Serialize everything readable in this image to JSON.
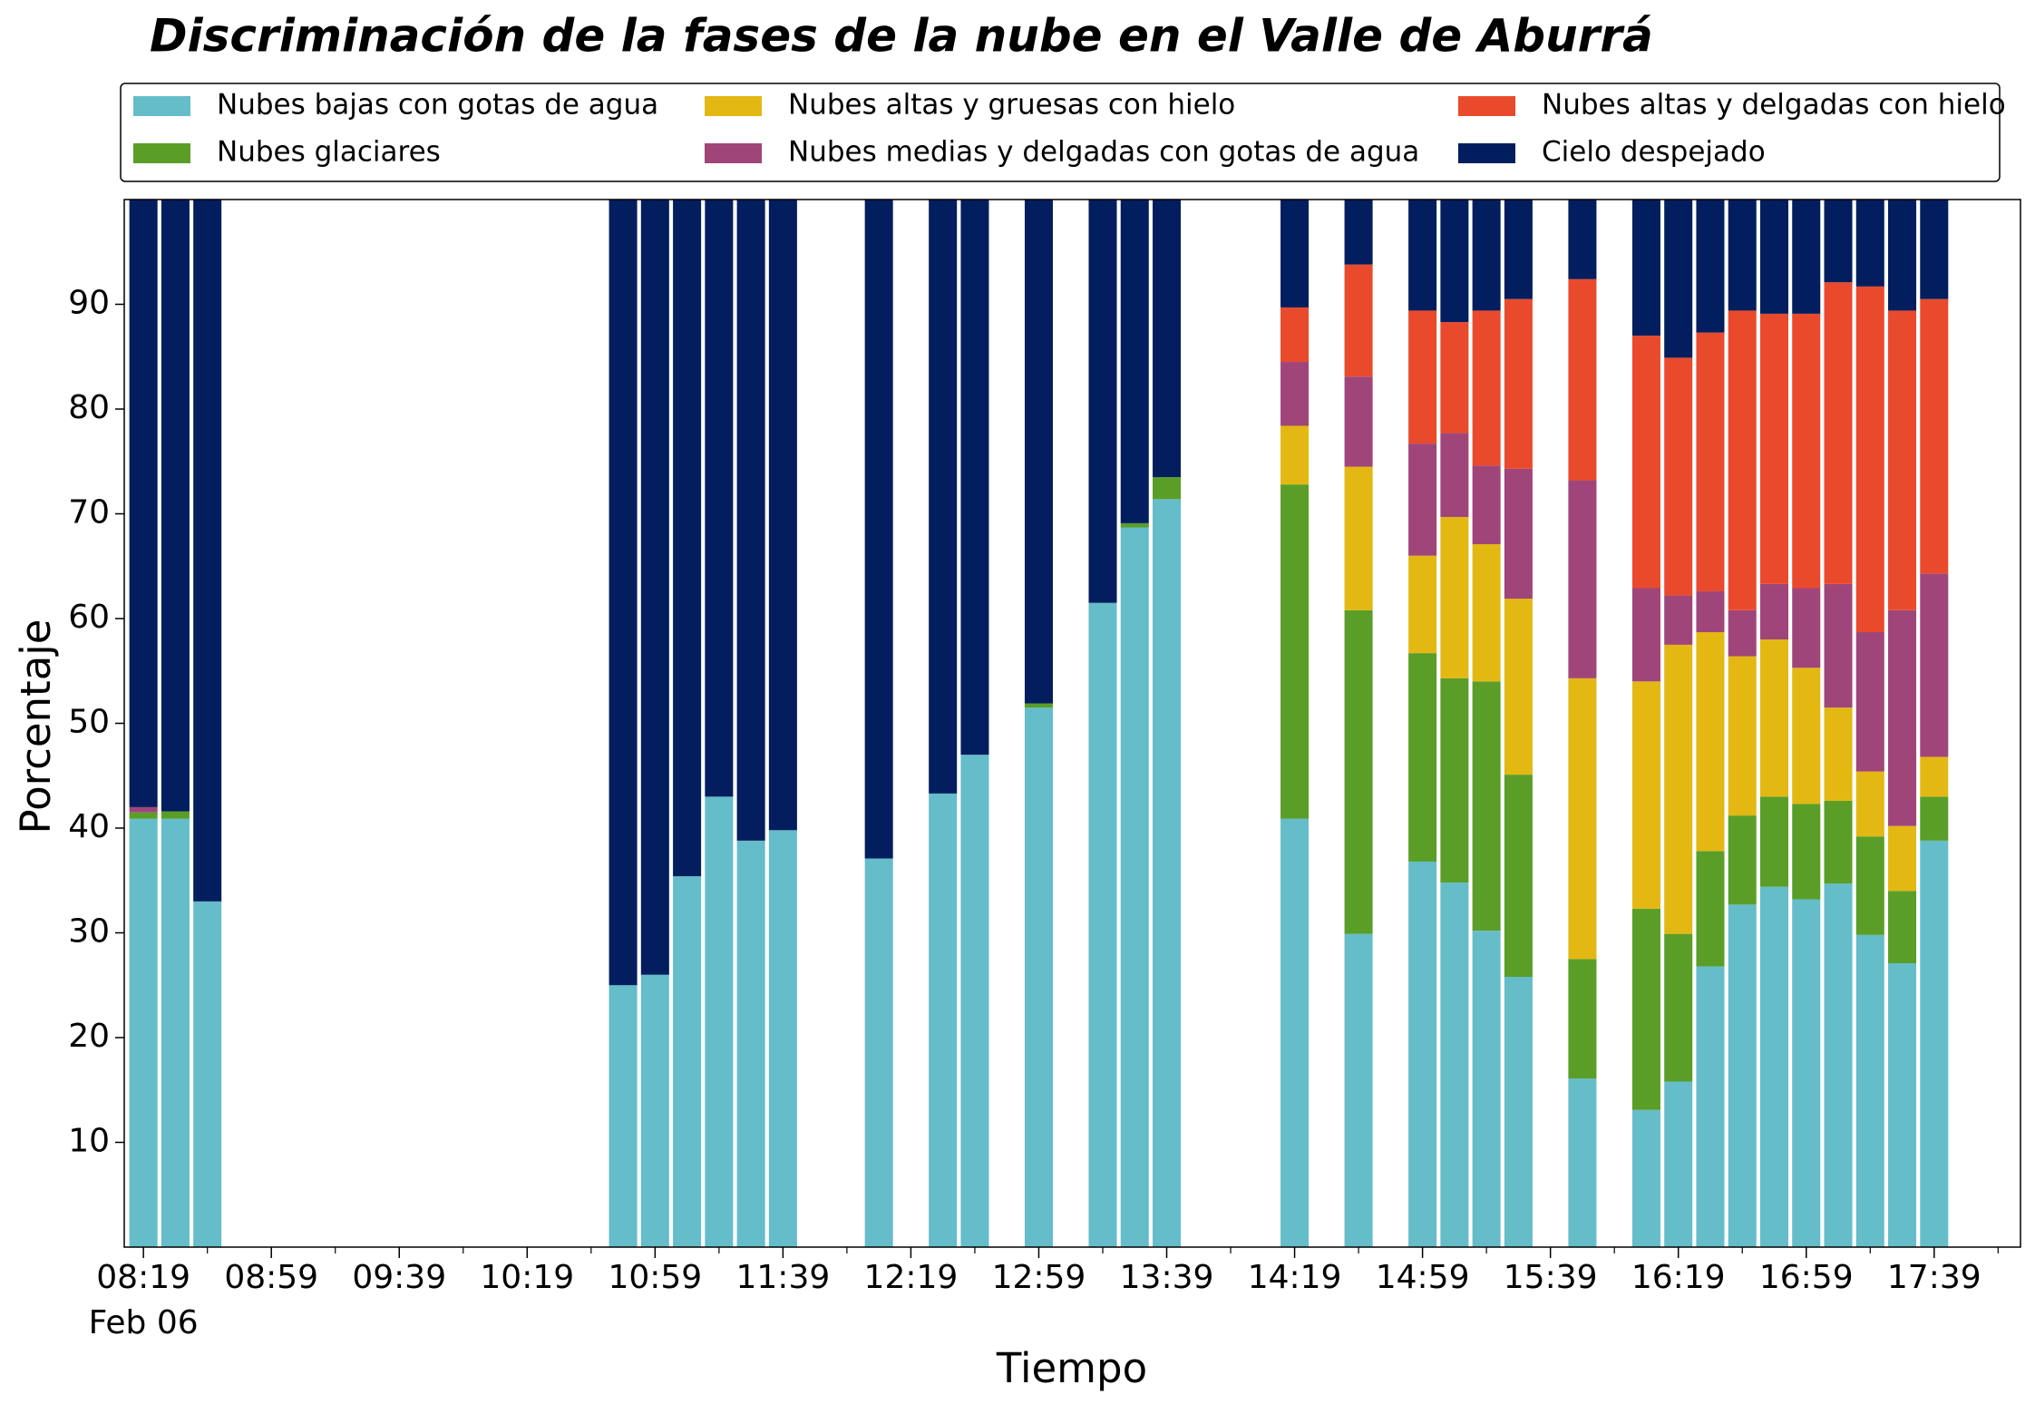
{
  "chart_data": {
    "type": "stacked_bar",
    "title": "Discriminación de la fases de la nube en el Valle de Aburrá",
    "xlabel": "Tiempo",
    "ylabel": "Porcentaje",
    "x_date": "Feb 06",
    "x": [
      "08:19",
      "08:29",
      "08:39",
      "10:49",
      "10:59",
      "11:09",
      "11:19",
      "11:29",
      "11:39",
      "12:09",
      "12:29",
      "12:39",
      "12:59",
      "13:19",
      "13:29",
      "13:39",
      "14:19",
      "14:39",
      "14:59",
      "15:09",
      "15:19",
      "15:29",
      "15:49",
      "16:09",
      "16:19",
      "16:29",
      "16:39",
      "16:49",
      "16:59",
      "17:09",
      "17:19",
      "17:29",
      "17:39"
    ],
    "series": [
      {
        "name": "Nubes bajas con gotas de agua",
        "color": "#64bdc9",
        "values": [
          40.9,
          40.9,
          33,
          25,
          26,
          35.4,
          43,
          38.8,
          39.8,
          37.1,
          43.3,
          47,
          51.5,
          61.5,
          68.7,
          71.4,
          40.9,
          29.9,
          36.8,
          34.8,
          30.2,
          25.8,
          16.1,
          13.1,
          15.8,
          26.8,
          32.7,
          34.4,
          33.2,
          34.7,
          29.8,
          27.1,
          38.8
        ]
      },
      {
        "name": "Nubes glaciares",
        "color": "#5a9e28",
        "values": [
          0.6,
          0.7,
          0,
          0,
          0,
          0,
          0,
          0,
          0,
          0,
          0,
          0,
          0.4,
          0,
          0.4,
          2.1,
          31.9,
          30.9,
          19.9,
          19.5,
          23.8,
          19.3,
          11.4,
          19.2,
          14.1,
          11,
          8.5,
          8.6,
          9.1,
          7.9,
          9.4,
          6.9,
          4.2
        ]
      },
      {
        "name": "Nubes altas y gruesas con hielo",
        "color": "#e3b813",
        "values": [
          0,
          0,
          0,
          0,
          0,
          0,
          0,
          0,
          0,
          0,
          0,
          0,
          0,
          0,
          0,
          0,
          5.6,
          13.7,
          9.3,
          15.4,
          13.1,
          16.8,
          26.8,
          21.7,
          27.6,
          20.9,
          15.2,
          15,
          13,
          8.9,
          6.2,
          6.2,
          3.8
        ]
      },
      {
        "name": "Nubes medias y delgadas con gotas de agua",
        "color": "#a04579",
        "values": [
          0.5,
          0,
          0,
          0,
          0,
          0,
          0,
          0,
          0,
          0,
          0,
          0,
          0,
          0,
          0,
          0,
          6.1,
          8.6,
          10.7,
          8,
          7.5,
          12.4,
          18.9,
          8.9,
          4.7,
          3.9,
          4.4,
          5.3,
          7.6,
          11.8,
          13.3,
          20.6,
          17.5
        ]
      },
      {
        "name": "Nubes altas y delgadas con hielo",
        "color": "#ea4a2c",
        "values": [
          0,
          0,
          0,
          0,
          0,
          0,
          0,
          0,
          0,
          0,
          0,
          0,
          0,
          0,
          0,
          0,
          5.2,
          10.7,
          12.7,
          10.6,
          14.8,
          16.2,
          19.2,
          24.1,
          22.7,
          24.7,
          28.6,
          25.8,
          26.2,
          28.8,
          33,
          28.6,
          26.2
        ]
      },
      {
        "name": "Cielo despejado",
        "color": "#021e5e",
        "values": [
          58,
          58.4,
          67,
          75,
          74,
          64.6,
          57,
          61.2,
          60.2,
          62.9,
          56.7,
          53,
          48.1,
          38.5,
          30.9,
          26.5,
          10.3,
          6.2,
          10.6,
          11.7,
          10.6,
          9.5,
          7.6,
          13,
          15.1,
          12.7,
          10.6,
          10.9,
          10.9,
          7.9,
          8.3,
          10.6,
          9.5
        ]
      }
    ],
    "xlim": [
      "08:13",
      "18:06"
    ],
    "xticks": [
      "08:19",
      "08:59",
      "09:39",
      "10:19",
      "10:59",
      "11:39",
      "12:19",
      "12:59",
      "13:39",
      "14:19",
      "14:59",
      "15:39",
      "16:19",
      "16:59",
      "17:39"
    ],
    "ylim": [
      0,
      100
    ],
    "yticks": [
      10,
      20,
      30,
      40,
      50,
      60,
      70,
      80,
      90
    ]
  }
}
